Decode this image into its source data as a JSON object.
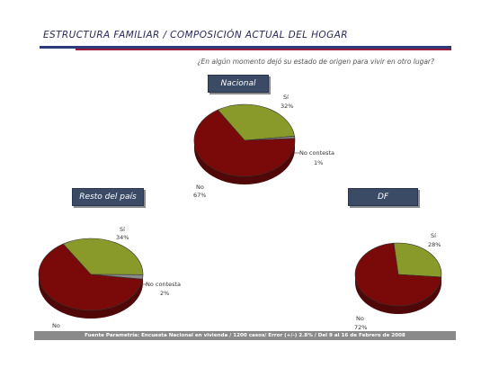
{
  "header": {
    "title": "ESTRUCTURA FAMILIAR / COMPOSICIÓN ACTUAL DEL HOGAR",
    "question": "¿En algún momento dejó su estado de origen para vivir en otro lugar?"
  },
  "badges": {
    "nacional": "Nacional",
    "resto": "Resto del país",
    "df": "DF"
  },
  "colors": {
    "si": "#8a9a2a",
    "no": "#7a0a0a",
    "no_contesta": "#8a8a8a",
    "badge": "#3b4b66"
  },
  "chart_data": [
    {
      "type": "pie",
      "title": "Nacional",
      "slices": [
        {
          "label": "Sí",
          "value": 32
        },
        {
          "label": "No contesta",
          "value": 1
        },
        {
          "label": "No",
          "value": 67
        }
      ],
      "labels": {
        "si": "Sí",
        "si_pct": "32%",
        "nc": "No contesta",
        "nc_pct": "1%",
        "no": "No",
        "no_pct": "67%"
      }
    },
    {
      "type": "pie",
      "title": "Resto del país",
      "slices": [
        {
          "label": "Sí",
          "value": 34
        },
        {
          "label": "No contesta",
          "value": 2
        },
        {
          "label": "No",
          "value": 64
        }
      ],
      "labels": {
        "si": "Sí",
        "si_pct": "34%",
        "nc": "No contesta",
        "nc_pct": "2%",
        "no": "No"
      }
    },
    {
      "type": "pie",
      "title": "DF",
      "slices": [
        {
          "label": "Sí",
          "value": 28
        },
        {
          "label": "No",
          "value": 72
        }
      ],
      "labels": {
        "si": "Sí",
        "si_pct": "28%",
        "no": "No",
        "no_pct": "72%"
      }
    }
  ],
  "footer": "Fuente Parametría: Encuesta Nacional en vivienda / 1200 casos/ Error (+/-) 2.8% / Del 9 al 16 de Febrero de 2008"
}
